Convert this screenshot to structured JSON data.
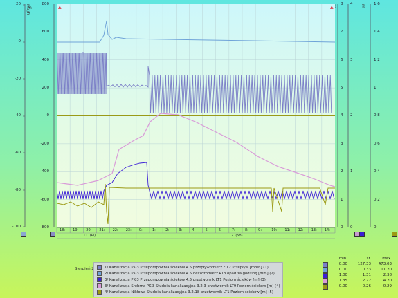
{
  "left_axes": {
    "outer": {
      "ticks": [
        "20",
        "0",
        "-20",
        "-40",
        "-60",
        "-80",
        "-100"
      ],
      "unit": "m3/h"
    },
    "inner": {
      "ticks": [
        "800",
        "600",
        "400",
        "200",
        "0",
        "-200",
        "-400",
        "-600",
        "-800"
      ],
      "unit": "1"
    }
  },
  "right_axes": {
    "r1": {
      "ticks": [
        "8",
        "7",
        "6",
        "5",
        "4",
        "3",
        "2",
        "1",
        "0"
      ],
      "unit": "m"
    },
    "r2": {
      "ticks": [
        "4",
        "3",
        "2",
        "1",
        "0"
      ],
      "unit": "m"
    },
    "r3": {
      "ticks": [
        "1,6",
        "1,4",
        "1,2",
        "1",
        "0,8",
        "0,6",
        "0,4",
        "0,2",
        "0"
      ],
      "unit": "m"
    }
  },
  "time_axis": {
    "hours": [
      "18:",
      "19:",
      "20:",
      "21:",
      "22:",
      "23:",
      "0:",
      "1:",
      "2:",
      "3:",
      "4:",
      "5:",
      "6:",
      "7:",
      "8:",
      "9:",
      "10:",
      "11:",
      "12:",
      "13:",
      "14:"
    ],
    "days": [
      "11. (Pi)",
      "12. (So)"
    ]
  },
  "date_label": "Sierpień 2017",
  "legend": [
    {
      "text": "1/ Kanalizacja PK-3 Przepompownia ścieków 4.5 przepływomierz FIT2 Przepływ [m3/h] (1)",
      "color": "#7b7fc7"
    },
    {
      "text": "2/ Kanalizacja PK-3 Przepompownia ścieków 4.5 deszczomierz RT3 opad za godzinę [mm] (2)",
      "color": "#6fa3d8"
    },
    {
      "text": "3/ Kanalizacja PK-3 Przepompownia ścieków 4.5 przetwornik LT1 Poziom ścieków [m] (3)",
      "color": "#3b1fd6"
    },
    {
      "text": "3/ Kanalizacja Srebrna PK-3 Studnia kanalizacyjna 3.2.3 przetwornik LT9 Poziom ścieków [m] (4)",
      "color": "#d99ad8"
    },
    {
      "text": "4/ Kanalizacja Nikłowa Studnia kanalizacyjna 3.2.18 przetwornik LT1 Poziom ścieków [m] (5)",
      "color": "#9b9a14"
    }
  ],
  "stats": {
    "headers": [
      "min.",
      "śr.",
      "max."
    ],
    "rows": [
      {
        "min": "0.00",
        "avg": "127.33",
        "max": "473.03",
        "color": "#7b7fc7"
      },
      {
        "min": "0.00",
        "avg": "0.33",
        "max": "11.20",
        "color": "#6fa3d8"
      },
      {
        "min": "1.00",
        "avg": "1.31",
        "max": "2.38",
        "color": "#3b1fd6"
      },
      {
        "min": "1.35",
        "avg": "2.72",
        "max": "4.20",
        "color": "#d99ad8"
      },
      {
        "min": "0.00",
        "avg": "0.26",
        "max": "0.29",
        "color": "#9b9a14"
      }
    ]
  },
  "colors": {
    "flow": "#7b7fc7",
    "rain": "#6fa3d8",
    "level3": "#3b1fd6",
    "level4": "#d99ad8",
    "level5": "#9b9a14"
  }
}
